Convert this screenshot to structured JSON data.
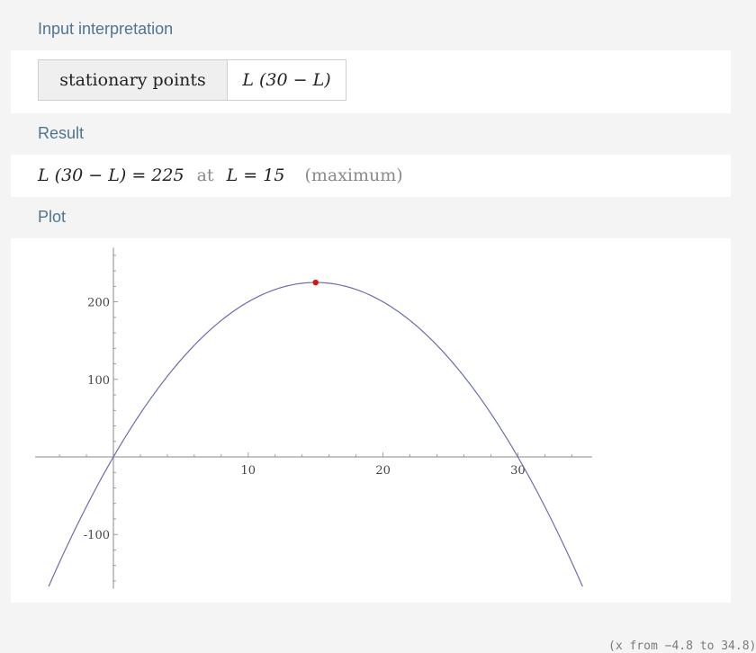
{
  "pods": {
    "input": {
      "title": "Input interpretation",
      "key": "stationary points",
      "value": "L (30 − L)"
    },
    "result": {
      "title": "Result",
      "expression": "L (30 − L) = 225",
      "at": "at",
      "condition": "L = 15",
      "qualifier": "(maximum)"
    },
    "plot": {
      "title": "Plot",
      "range_note": "(x from −4.8 to 34.8)"
    }
  },
  "chart_data": {
    "type": "line",
    "function": "L (30 − L)",
    "x_range": [
      -4.8,
      34.8
    ],
    "ylim": [
      -170,
      270
    ],
    "x_ticks": [
      10,
      20,
      30
    ],
    "y_ticks": [
      -100,
      100,
      200
    ],
    "series": [
      {
        "x": [
          -4.8,
          0,
          5,
          10,
          15,
          20,
          25,
          30,
          34.8
        ],
        "y": [
          -167.04,
          0,
          125,
          200,
          225,
          200,
          125,
          0,
          -167.04
        ]
      }
    ],
    "highlight_point": {
      "x": 15,
      "y": 225
    },
    "colors": {
      "curve": "#6c6cb0",
      "point": "#e01010",
      "axis": "#888888"
    }
  }
}
